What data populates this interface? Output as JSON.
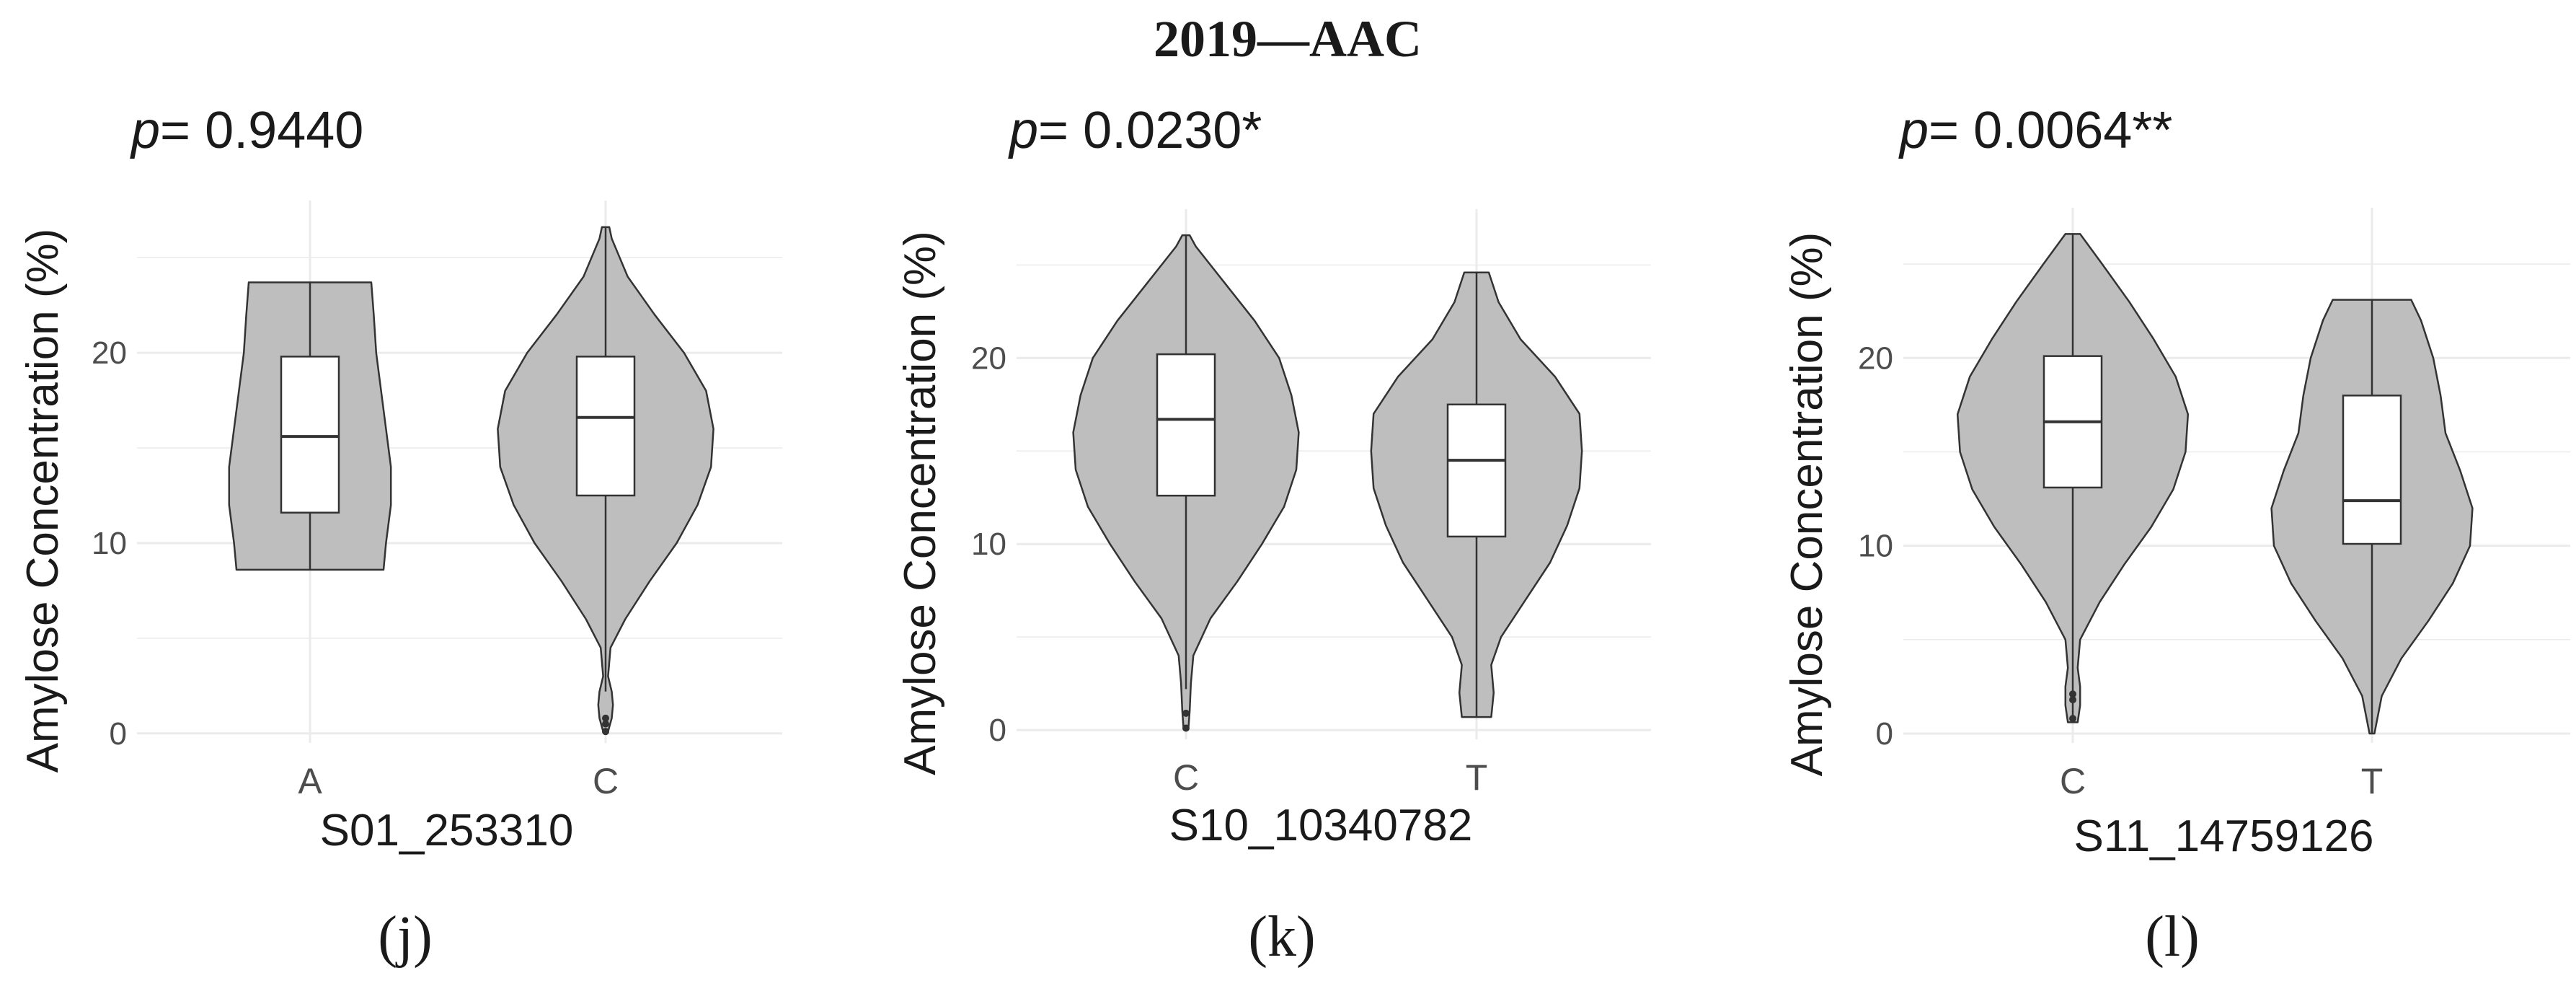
{
  "title": "2019—AAC",
  "colors": {
    "violin_fill": "#bebebe",
    "violin_stroke": "#333333",
    "box_fill": "#ffffff",
    "grid": "#ebebeb"
  },
  "chart_data": [
    {
      "type": "violin",
      "panel_label": "(j)",
      "p_prefix": "p",
      "p_value": "= 0.9440",
      "xlabel": "S01_253310",
      "ylabel": "Amylose Concentration (%)",
      "ylim": [
        -0.5,
        28
      ],
      "yticks": [
        0,
        10,
        20
      ],
      "grid": true,
      "categories": [
        "A",
        "C"
      ],
      "groups": [
        {
          "name": "A",
          "min": 8.6,
          "q1": 11.6,
          "median": 15.6,
          "q3": 19.8,
          "max": 23.7,
          "outliers": [],
          "density": [
            [
              8.6,
              0.6
            ],
            [
              10.0,
              0.62
            ],
            [
              12.0,
              0.66
            ],
            [
              14.0,
              0.66
            ],
            [
              16.0,
              0.62
            ],
            [
              18.0,
              0.58
            ],
            [
              20.0,
              0.54
            ],
            [
              22.0,
              0.52
            ],
            [
              23.7,
              0.5
            ]
          ]
        },
        {
          "name": "C",
          "min": 2.2,
          "q1": 12.5,
          "median": 16.6,
          "q3": 19.8,
          "max": 26.6,
          "outliers": [
            0.5,
            0.8,
            0.1
          ],
          "density": [
            [
              0.1,
              0.02
            ],
            [
              0.8,
              0.05
            ],
            [
              1.5,
              0.06
            ],
            [
              2.2,
              0.05
            ],
            [
              3.0,
              0.02
            ],
            [
              4.5,
              0.04
            ],
            [
              6.0,
              0.16
            ],
            [
              8.0,
              0.36
            ],
            [
              10.0,
              0.58
            ],
            [
              12.0,
              0.75
            ],
            [
              14.0,
              0.86
            ],
            [
              16.0,
              0.88
            ],
            [
              18.0,
              0.82
            ],
            [
              20.0,
              0.64
            ],
            [
              22.0,
              0.4
            ],
            [
              24.0,
              0.18
            ],
            [
              26.0,
              0.05
            ],
            [
              26.6,
              0.03
            ]
          ]
        }
      ]
    },
    {
      "type": "violin",
      "panel_label": "(k)",
      "p_prefix": "p",
      "p_value": "= 0.0230*",
      "xlabel": "S10_10340782",
      "ylabel": "Amylose Concentration (%)",
      "ylim": [
        -0.5,
        28
      ],
      "yticks": [
        0,
        10,
        20
      ],
      "grid": true,
      "categories": [
        "C",
        "T"
      ],
      "groups": [
        {
          "name": "C",
          "min": 2.2,
          "q1": 12.6,
          "median": 16.7,
          "q3": 20.2,
          "max": 26.6,
          "outliers": [
            0.9,
            0.1
          ],
          "density": [
            [
              0.1,
              0.02
            ],
            [
              1.0,
              0.03
            ],
            [
              2.5,
              0.04
            ],
            [
              4.0,
              0.06
            ],
            [
              6.0,
              0.2
            ],
            [
              8.0,
              0.42
            ],
            [
              10.0,
              0.62
            ],
            [
              12.0,
              0.8
            ],
            [
              14.0,
              0.9
            ],
            [
              16.0,
              0.92
            ],
            [
              18.0,
              0.86
            ],
            [
              20.0,
              0.76
            ],
            [
              22.0,
              0.56
            ],
            [
              24.0,
              0.32
            ],
            [
              26.0,
              0.08
            ],
            [
              26.6,
              0.03
            ]
          ]
        },
        {
          "name": "T",
          "min": 0.7,
          "q1": 10.4,
          "median": 14.5,
          "q3": 17.5,
          "max": 24.6,
          "outliers": [],
          "density": [
            [
              0.7,
              0.12
            ],
            [
              2.0,
              0.14
            ],
            [
              3.5,
              0.12
            ],
            [
              5.0,
              0.2
            ],
            [
              7.0,
              0.4
            ],
            [
              9.0,
              0.6
            ],
            [
              11.0,
              0.74
            ],
            [
              13.0,
              0.84
            ],
            [
              15.0,
              0.86
            ],
            [
              17.0,
              0.84
            ],
            [
              19.0,
              0.64
            ],
            [
              21.0,
              0.36
            ],
            [
              23.0,
              0.18
            ],
            [
              24.6,
              0.1
            ]
          ]
        }
      ]
    },
    {
      "type": "violin",
      "panel_label": "(l)",
      "p_prefix": "p",
      "p_value": "= 0.0064**",
      "xlabel": "S11_14759126",
      "ylabel": "Amylose Concentration (%)",
      "ylim": [
        -0.5,
        28
      ],
      "yticks": [
        0,
        10,
        20
      ],
      "grid": true,
      "categories": [
        "C",
        "T"
      ],
      "groups": [
        {
          "name": "C",
          "min": 0.6,
          "q1": 13.1,
          "median": 16.6,
          "q3": 20.1,
          "max": 26.6,
          "outliers": [
            2.1,
            1.8,
            0.8
          ],
          "density": [
            [
              0.6,
              0.04
            ],
            [
              1.5,
              0.06
            ],
            [
              2.5,
              0.06
            ],
            [
              3.5,
              0.04
            ],
            [
              5.0,
              0.06
            ],
            [
              7.0,
              0.22
            ],
            [
              9.0,
              0.42
            ],
            [
              11.0,
              0.64
            ],
            [
              13.0,
              0.82
            ],
            [
              15.0,
              0.92
            ],
            [
              17.0,
              0.94
            ],
            [
              19.0,
              0.84
            ],
            [
              21.0,
              0.66
            ],
            [
              23.0,
              0.46
            ],
            [
              25.0,
              0.24
            ],
            [
              26.6,
              0.06
            ]
          ]
        },
        {
          "name": "T",
          "min": 0.0,
          "q1": 10.1,
          "median": 12.4,
          "q3": 18.0,
          "max": 23.1,
          "outliers": [],
          "density": [
            [
              0.0,
              0.02
            ],
            [
              2.0,
              0.08
            ],
            [
              4.0,
              0.24
            ],
            [
              6.0,
              0.46
            ],
            [
              8.0,
              0.66
            ],
            [
              10.0,
              0.8
            ],
            [
              12.0,
              0.82
            ],
            [
              14.0,
              0.72
            ],
            [
              16.0,
              0.6
            ],
            [
              18.0,
              0.56
            ],
            [
              20.0,
              0.5
            ],
            [
              22.0,
              0.4
            ],
            [
              23.1,
              0.32
            ]
          ]
        }
      ]
    }
  ]
}
